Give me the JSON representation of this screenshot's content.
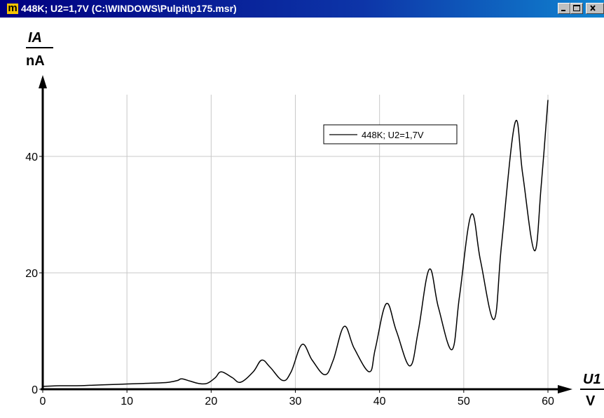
{
  "window": {
    "title": "448K; U2=1,7V (C:\\WINDOWS\\Pulpit\\p175.msr)",
    "app_icon_letter": "m",
    "controls": [
      "minimize",
      "maximize",
      "close"
    ]
  },
  "chart_data": {
    "type": "line",
    "ylabel_top": "IA",
    "ylabel_bottom": "nA",
    "xlabel_top": "U1",
    "xlabel_bottom": "V",
    "xlim": [
      0,
      60
    ],
    "ylim": [
      0,
      50
    ],
    "xticks": [
      0,
      10,
      20,
      30,
      40,
      50,
      60
    ],
    "yticks": [
      0,
      20,
      40
    ],
    "grid": true,
    "legend_position": "top-right",
    "series": [
      {
        "name": "448K; U2=1,7V",
        "color": "#000000",
        "x": [
          0,
          2,
          4,
          6,
          8,
          10,
          12,
          14,
          15,
          16,
          16.5,
          17.5,
          18.5,
          19.5,
          20.5,
          21.2,
          22.5,
          23.5,
          25,
          26,
          27,
          28.5,
          29.5,
          30.8,
          32,
          33.5,
          34.5,
          35.8,
          37,
          38.8,
          39.5,
          40.8,
          42,
          43.6,
          44.6,
          45.9,
          47,
          48.6,
          49.5,
          50.9,
          52,
          53.6,
          54.5,
          56.1,
          57,
          58.4,
          59.2,
          60
        ],
        "y": [
          0.5,
          0.6,
          0.6,
          0.7,
          0.8,
          0.9,
          1.0,
          1.1,
          1.2,
          1.5,
          1.8,
          1.4,
          1.0,
          1.0,
          2.0,
          3.0,
          2.0,
          1.2,
          3.0,
          5.0,
          3.8,
          1.5,
          3.0,
          7.7,
          5.0,
          2.5,
          5.0,
          10.8,
          7.0,
          3.0,
          7.0,
          14.7,
          10.0,
          4.0,
          10.0,
          20.6,
          14.0,
          6.8,
          16.0,
          30.0,
          22.0,
          12.0,
          25.0,
          45.8,
          37.0,
          23.8,
          35.0,
          49.7
        ]
      }
    ]
  }
}
